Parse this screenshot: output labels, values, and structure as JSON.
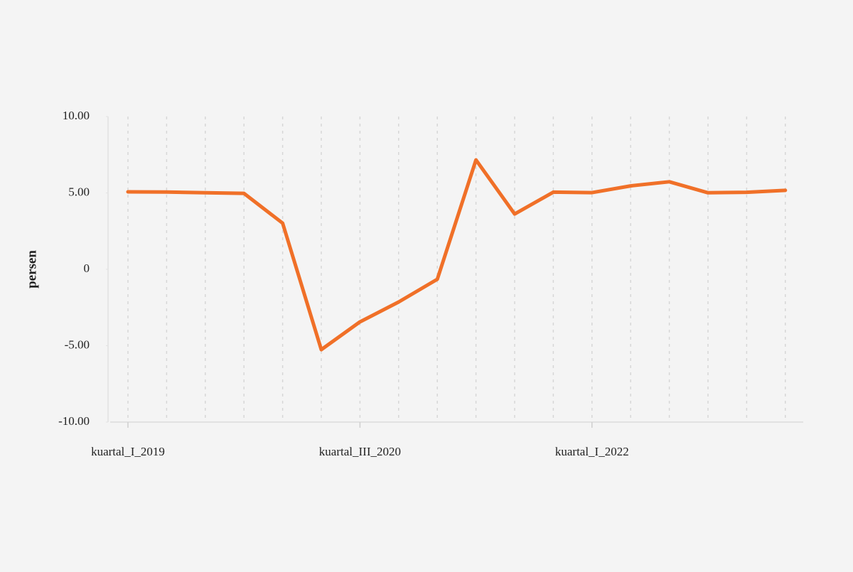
{
  "chart_data": {
    "type": "line",
    "y_label": "persen",
    "categories": [
      "kuartal_I_2019",
      null,
      null,
      null,
      null,
      null,
      "kuartal_III_2020",
      null,
      null,
      null,
      null,
      null,
      "kuartal_I_2022",
      null,
      null,
      null,
      null,
      null
    ],
    "series": [
      {
        "color": "#f07028",
        "values": [
          5.07,
          5.06,
          5.01,
          4.97,
          3.02,
          -5.26,
          -3.44,
          -2.14,
          -0.65,
          7.16,
          3.62,
          5.05,
          5.02,
          5.46,
          5.73,
          5.01,
          5.04,
          5.17
        ]
      }
    ],
    "ylim": [
      -10,
      10
    ],
    "yticks": [
      {
        "value": -10,
        "label": "-10.00"
      },
      {
        "value": -5,
        "label": "-5.00"
      },
      0,
      {
        "value": 5,
        "label": "5.00"
      },
      {
        "value": 10,
        "label": "10.00"
      }
    ],
    "grid": true
  }
}
